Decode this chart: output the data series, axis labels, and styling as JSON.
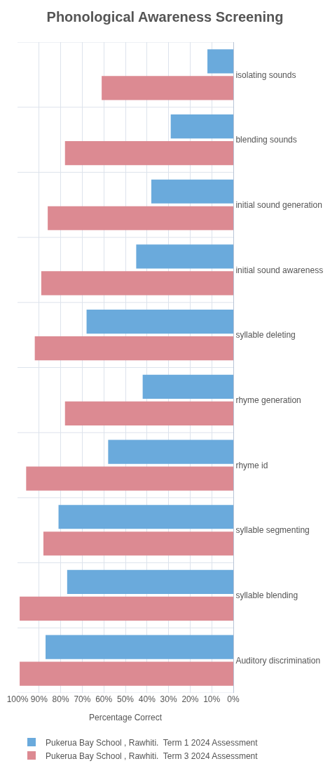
{
  "chart_data": {
    "type": "bar",
    "orientation": "horizontal",
    "title": "Phonological Awareness Screening",
    "xlabel": "Percentage Correct",
    "categories": [
      "isolating sounds",
      "blending sounds",
      "initial sound generation",
      "initial sound awareness",
      "syllable deleting",
      "rhyme generation",
      "rhyme id",
      "syllable segmenting",
      "syllable blending",
      "Auditory discrimination"
    ],
    "series": [
      {
        "name": "Pukerua Bay School , Rawhiti.  Term 1 2024 Assessment",
        "color": "#6aaadc",
        "values": [
          12,
          29,
          38,
          45,
          68,
          42,
          58,
          81,
          77,
          87
        ]
      },
      {
        "name": "Pukerua Bay School , Rawhiti.  Term 3 2024 Assessment",
        "color": "#dc8a92",
        "values": [
          61,
          78,
          86,
          89,
          92,
          78,
          96,
          88,
          99,
          99
        ]
      }
    ],
    "xlim": [
      100,
      0
    ],
    "xticks": [
      {
        "value": 100,
        "label": "100%"
      },
      {
        "value": 90,
        "label": "90%"
      },
      {
        "value": 80,
        "label": "80%"
      },
      {
        "value": 70,
        "label": "70%"
      },
      {
        "value": 60,
        "label": "60%"
      },
      {
        "value": 50,
        "label": "50%"
      },
      {
        "value": 40,
        "label": "40%"
      },
      {
        "value": 30,
        "label": "30%"
      },
      {
        "value": 20,
        "label": "20%"
      },
      {
        "value": 10,
        "label": "10%"
      },
      {
        "value": 0,
        "label": "0%"
      }
    ],
    "grid": true,
    "legend": "bottom"
  }
}
